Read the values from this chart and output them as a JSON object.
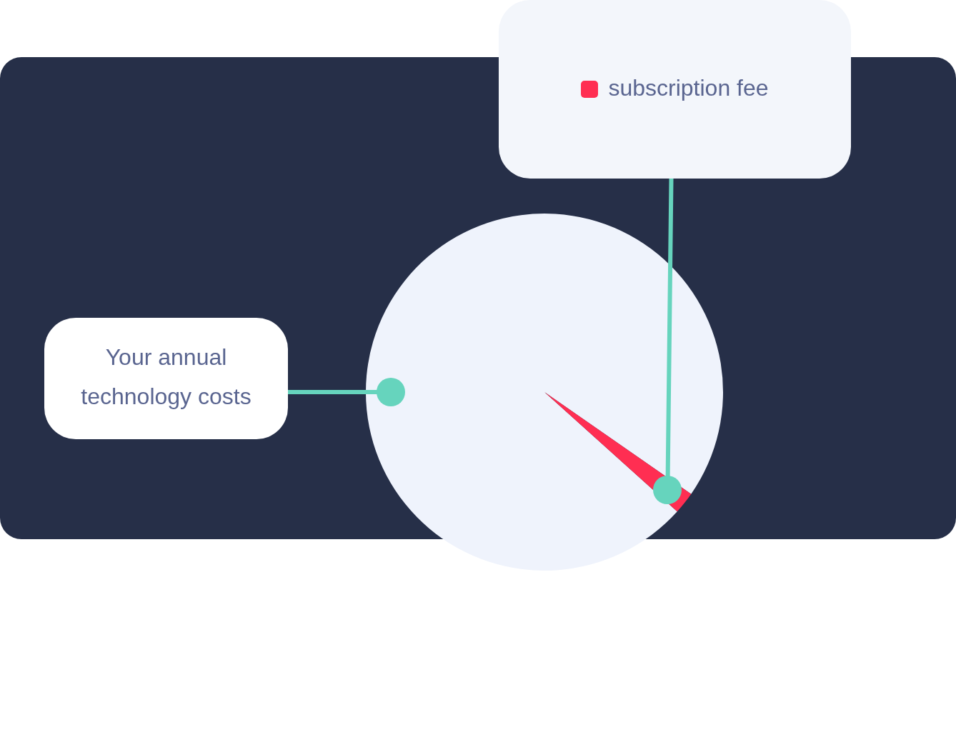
{
  "chart_data": {
    "type": "pie",
    "categories": [
      "Your annual technology costs",
      "subscription fee"
    ],
    "values": [
      98,
      2
    ],
    "colors": [
      "#eff3fc",
      "#ff2e52"
    ]
  }
}
